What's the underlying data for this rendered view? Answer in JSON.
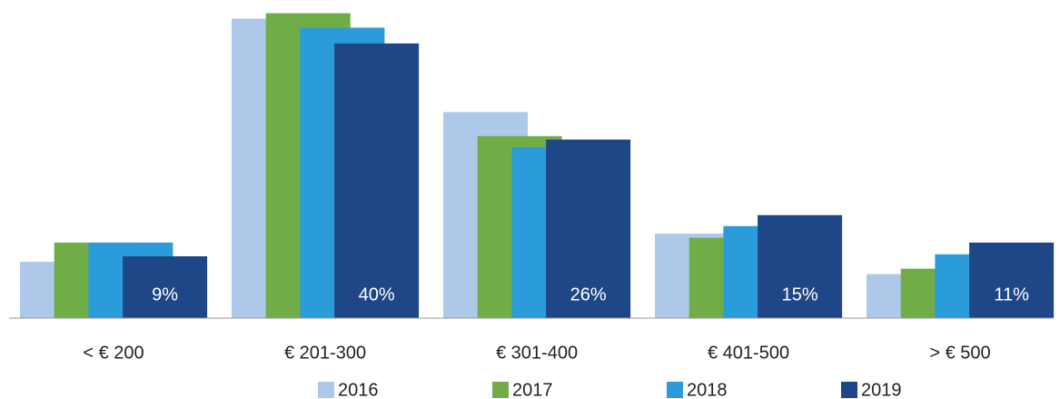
{
  "chart_data": {
    "type": "bar",
    "categories": [
      "< € 200",
      "€ 201-300",
      "€ 301-400",
      "€ 401-500",
      "> € 500"
    ],
    "series": [
      {
        "name": "2016",
        "color": "#aec8ea",
        "values": [
          8.2,
          43.6,
          30,
          12.3,
          6.4
        ]
      },
      {
        "name": "2017",
        "color": "#70ad47",
        "values": [
          11,
          44.4,
          26.5,
          11.7,
          7.2
        ]
      },
      {
        "name": "2018",
        "color": "#2a9cd9",
        "values": [
          11,
          42.3,
          24.9,
          13.4,
          9.3
        ]
      },
      {
        "name": "2019",
        "color": "#1f4788",
        "values": [
          9,
          40,
          26,
          15,
          11
        ],
        "value_labels": [
          "9%",
          "40%",
          "26%",
          "15%",
          "11%"
        ]
      }
    ],
    "ylim": [
      0,
      45
    ],
    "legend": "bottom"
  }
}
